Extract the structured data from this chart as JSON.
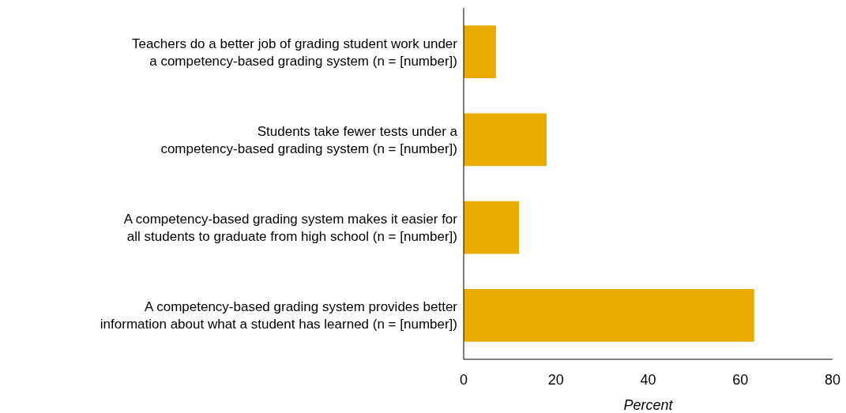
{
  "chart_data": {
    "type": "bar",
    "orientation": "horizontal",
    "xlabel": "Percent",
    "categories": [
      "Teachers do a better job of grading student work under a competency-based grading system (n = [number])",
      "Students take fewer tests under a competency-based grading system (n = [number])",
      "A competency-based grading system makes it easier for all students to graduate from high school (n = [number])",
      "A competency-based grading system provides better information about what a student has learned (n = [number])"
    ],
    "values": [
      7,
      18,
      12,
      63
    ],
    "color": "#eaab00",
    "xlim": [
      0,
      80
    ],
    "xticks": [
      0,
      20,
      40,
      60,
      80
    ],
    "grid": false
  }
}
